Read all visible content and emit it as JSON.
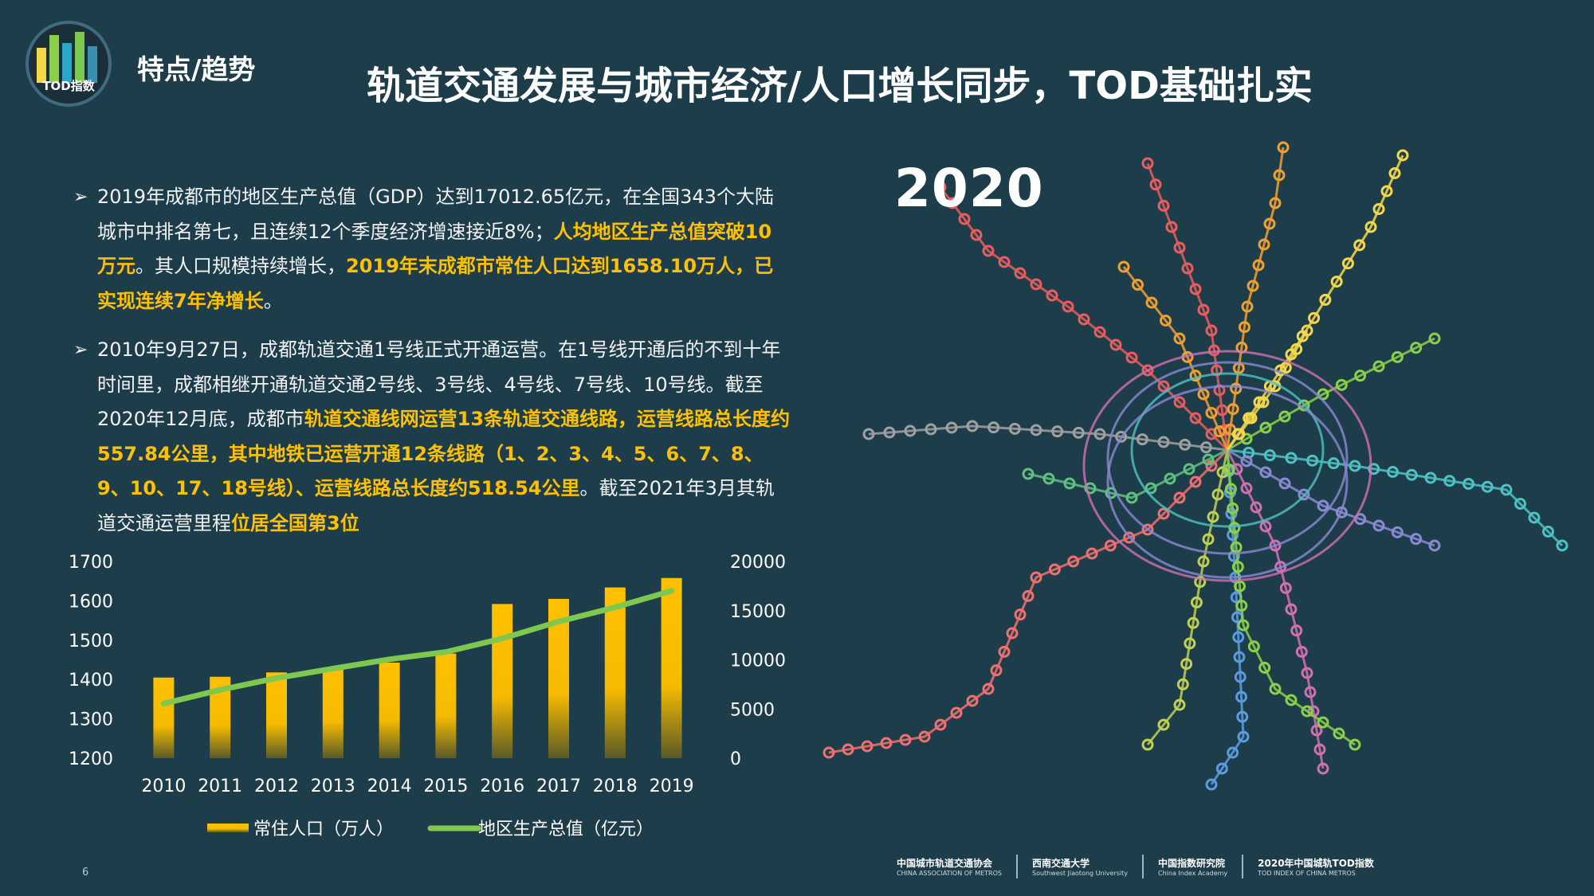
{
  "header": {
    "logo_text": "TOD指数",
    "section_label": "特点/趋势",
    "title": "轨道交通发展与城市经济/人口增长同步，TOD基础扎实"
  },
  "bullets": [
    {
      "segments": [
        {
          "text": "2019年成都市的地区生产总值（GDP）达到17012.65亿元，在全国343个大陆城市中排名第七，且连续12个季度经济增速接近8%；",
          "highlight": false
        },
        {
          "text": "人均地区生产总值突破10万元",
          "highlight": true
        },
        {
          "text": "。其人口规模持续增长，",
          "highlight": false
        },
        {
          "text": "2019年末成都市常住人口达到1658.10万人，已实现连续7年净增长",
          "highlight": true
        },
        {
          "text": "。",
          "highlight": false
        }
      ]
    },
    {
      "segments": [
        {
          "text": "2010年9月27日，成都轨道交通1号线正式开通运营。在1号线开通后的不到十年时间里，成都相继开通轨道交通2号线、3号线、4号线、7号线、10号线。截至2020年12月底，成都市",
          "highlight": false
        },
        {
          "text": "轨道交通线网运营13条轨道交通线路，运营线路总长度约557.84公里，其中地铁已运营开通12条线路（1、2、3、4、5、6、7、8、9、10、17、18号线）、运营线路总长度约518.54公里",
          "highlight": true
        },
        {
          "text": "。截至2021年3月其轨道交通运营里程",
          "highlight": false
        },
        {
          "text": "位居全国第3位",
          "highlight": true
        }
      ]
    }
  ],
  "chart_data": {
    "type": "bar",
    "categories": [
      "2010",
      "2011",
      "2012",
      "2013",
      "2014",
      "2015",
      "2016",
      "2017",
      "2018",
      "2019"
    ],
    "series": [
      {
        "name": "常住人口（万人）",
        "type": "bar",
        "axis": "left",
        "color": "#ffc000",
        "values": [
          1405,
          1407,
          1418,
          1430,
          1443,
          1466,
          1592,
          1605,
          1634,
          1658
        ]
      },
      {
        "name": "地区生产总值（亿元）",
        "type": "line",
        "axis": "right",
        "color": "#7ec850",
        "values": [
          5551,
          6950,
          8139,
          9109,
          10057,
          10801,
          12170,
          13890,
          15343,
          17013
        ]
      }
    ],
    "y_left": {
      "min": 1200,
      "max": 1700,
      "ticks": [
        1200,
        1300,
        1400,
        1500,
        1600,
        1700
      ]
    },
    "y_right": {
      "min": 0,
      "max": 20000,
      "ticks": [
        0,
        5000,
        10000,
        15000,
        20000
      ]
    },
    "legend_position": "bottom",
    "grid": false
  },
  "metro_map": {
    "year_label": "2020",
    "line_colors": [
      "#e85d5d",
      "#f0a030",
      "#f5d84a",
      "#8ad04a",
      "#4ec2c2",
      "#8a8ad0",
      "#d070b0",
      "#5b9be0",
      "#c0d050",
      "#f07070",
      "#60c080",
      "#a0a0a0"
    ]
  },
  "footer": {
    "page_number": "6",
    "org1": "中国城市轨道交通协会",
    "org1_en": "CHINA ASSOCIATION OF METROS",
    "org2": "西南交通大学",
    "org2_en": "Southwest Jiaotong University",
    "org3": "中国指数研究院",
    "org3_en": "China Index Academy",
    "brand": "2020年中国城轨TOD指数",
    "brand_en": "TOD INDEX OF CHINA METROS"
  }
}
